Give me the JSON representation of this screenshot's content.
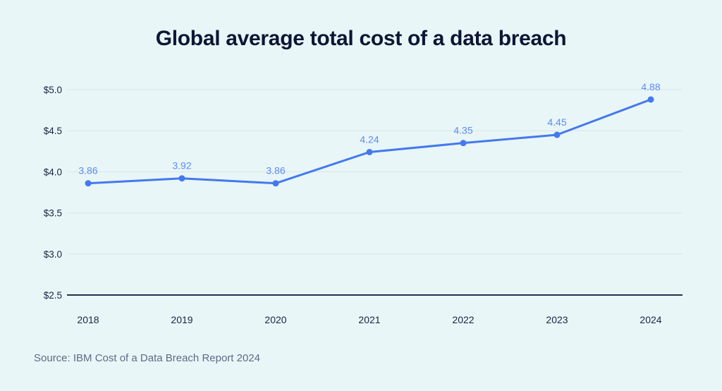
{
  "chart_data": {
    "type": "line",
    "title": "Global average total cost of a data breach",
    "source": "Source: IBM Cost of a Data Breach Report 2024",
    "categories": [
      "2018",
      "2019",
      "2020",
      "2021",
      "2022",
      "2023",
      "2024"
    ],
    "values": [
      3.86,
      3.92,
      3.86,
      4.24,
      4.35,
      4.45,
      4.88
    ],
    "point_labels": [
      "3.86",
      "3.92",
      "3.86",
      "4.24",
      "4.35",
      "4.45",
      "4.88"
    ],
    "yticks": [
      2.5,
      3.0,
      3.5,
      4.0,
      4.5,
      5.0
    ],
    "ytick_labels": [
      "$2.5",
      "$3.0",
      "$3.5",
      "$4.0",
      "$4.5",
      "$5.0"
    ],
    "ylim": [
      2.5,
      5.0
    ],
    "grid": true,
    "legend": "none",
    "colors": {
      "background": "#e9f6f8",
      "title": "#0e1534",
      "line": "#4479ee",
      "point": "#4479ee",
      "data_label": "#5b8cf5",
      "gridline": "#d9e4e6",
      "axis_line": "#27304f",
      "tick_label": "#1b2340",
      "source_text": "#5d6b86"
    }
  }
}
